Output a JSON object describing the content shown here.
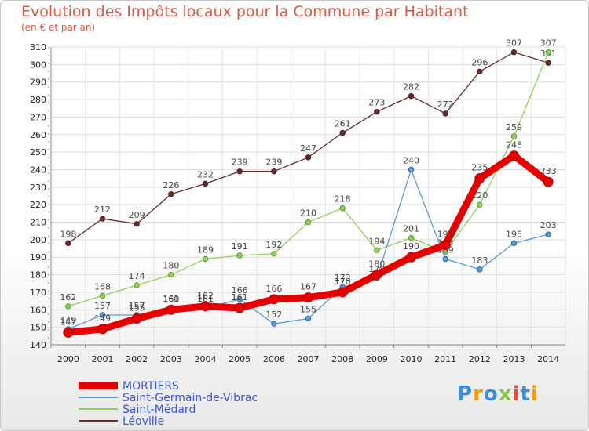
{
  "title": "Evolution des Impôts locaux pour la Commune par Habitant",
  "subtitle": "(en € et par an)",
  "chart_data": {
    "type": "line",
    "title": "Evolution des Impôts locaux pour la Commune par Habitant",
    "ylabel": "(en € et par an)",
    "x": [
      2000,
      2001,
      2002,
      2003,
      2004,
      2005,
      2006,
      2007,
      2008,
      2009,
      2010,
      2011,
      2012,
      2013,
      2014
    ],
    "ylim": [
      140,
      310
    ],
    "yticks": [
      140,
      150,
      160,
      170,
      180,
      190,
      200,
      210,
      220,
      230,
      240,
      250,
      260,
      270,
      280,
      290,
      300,
      310
    ],
    "series": [
      {
        "name": "MORTIERS",
        "color": "#e60000",
        "values": [
          147,
          149,
          155,
          160,
          162,
          161,
          166,
          167,
          170,
          180,
          190,
          197,
          235,
          248,
          233
        ]
      },
      {
        "name": "Saint-Germain-de-Vibrac",
        "color": "#5b9bd5",
        "values": [
          149,
          157,
          157,
          161,
          161,
          166,
          152,
          155,
          173,
          178,
          240,
          189,
          183,
          198,
          203
        ]
      },
      {
        "name": "Saint-Médard",
        "color": "#8fd35a",
        "values": [
          162,
          168,
          174,
          180,
          189,
          191,
          192,
          210,
          218,
          194,
          201,
          193,
          220,
          259,
          307
        ]
      },
      {
        "name": "Léoville",
        "color": "#6b2a2a",
        "values": [
          198,
          212,
          209,
          226,
          232,
          239,
          239,
          247,
          261,
          273,
          282,
          272,
          296,
          307,
          301
        ]
      }
    ],
    "legend_position": "bottom-left"
  },
  "logo": {
    "text": "Proxiti",
    "colors": [
      "#3e8ede",
      "#f39c12",
      "#3e8ede",
      "#8bc34a",
      "#e74c3c",
      "#3e8ede",
      "#f39c12"
    ]
  }
}
